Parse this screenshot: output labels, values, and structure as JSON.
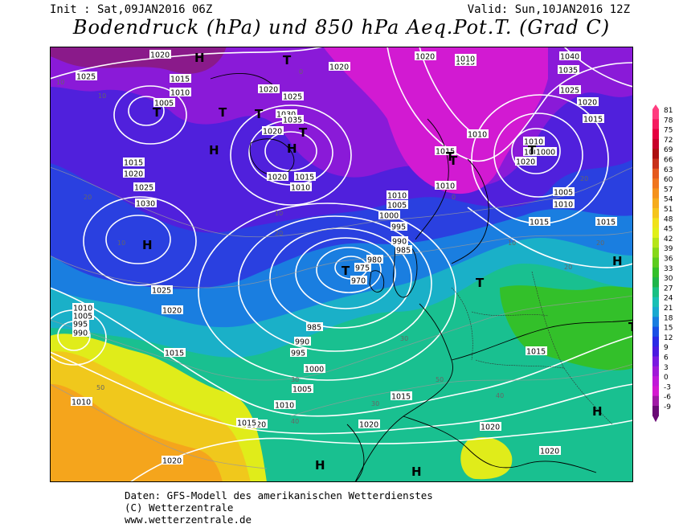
{
  "header": {
    "init": "Init : Sat,09JAN2016 06Z",
    "valid": "Valid: Sun,10JAN2016 12Z",
    "title": "Bodendruck (hPa) und 850 hPa Aeq.Pot.T. (Grad C)"
  },
  "footer": {
    "line1": "Daten: GFS-Modell des amerikanischen Wetterdienstes",
    "line2": "(C) Wetterzentrale",
    "line3": "www.wetterzentrale.de"
  },
  "colorbar": {
    "values": [
      "81",
      "78",
      "75",
      "72",
      "69",
      "66",
      "63",
      "60",
      "57",
      "54",
      "51",
      "48",
      "45",
      "42",
      "39",
      "36",
      "33",
      "30",
      "27",
      "24",
      "21",
      "18",
      "15",
      "12",
      "9",
      "6",
      "3",
      "0",
      "-3",
      "-6",
      "-9"
    ],
    "colors": [
      "#ff3d7f",
      "#f51c60",
      "#e5003f",
      "#c8002a",
      "#ad1010",
      "#c8311a",
      "#e55a1f",
      "#f0761f",
      "#f5921c",
      "#f6ac1c",
      "#f5c51c",
      "#f0e21c",
      "#e0f01a",
      "#b5e51a",
      "#86d81a",
      "#5ccc1f",
      "#33c02a",
      "#1fb54a",
      "#1ac084",
      "#1ac0b5",
      "#1aa9d0",
      "#1a7ee0",
      "#1a50e5",
      "#2a2ae5",
      "#4a1ae0",
      "#7a1ae0",
      "#a01ad8",
      "#c01ad8",
      "#d41ad0",
      "#a01aa5",
      "#6a0a75"
    ]
  },
  "map": {
    "pressure_labels": [
      {
        "text": "1020"
      },
      {
        "text": "1025"
      },
      {
        "text": "1015"
      },
      {
        "text": "1010"
      },
      {
        "text": "1005"
      },
      {
        "text": "1015"
      },
      {
        "text": "1020"
      },
      {
        "text": "1025"
      },
      {
        "text": "1030"
      },
      {
        "text": "1025"
      },
      {
        "text": "1020"
      },
      {
        "text": "1010"
      },
      {
        "text": "1005"
      },
      {
        "text": "995"
      },
      {
        "text": "990"
      },
      {
        "text": "1020"
      },
      {
        "text": "1025"
      },
      {
        "text": "1030"
      },
      {
        "text": "1035"
      },
      {
        "text": "1020"
      },
      {
        "text": "1015"
      },
      {
        "text": "1010"
      },
      {
        "text": "1020"
      },
      {
        "text": "1020"
      },
      {
        "text": "1015"
      },
      {
        "text": "1010"
      },
      {
        "text": "1005"
      },
      {
        "text": "1000"
      },
      {
        "text": "995"
      },
      {
        "text": "990"
      },
      {
        "text": "985"
      },
      {
        "text": "980"
      },
      {
        "text": "975"
      },
      {
        "text": "970"
      },
      {
        "text": "985"
      },
      {
        "text": "990"
      },
      {
        "text": "995"
      },
      {
        "text": "1000"
      },
      {
        "text": "1005"
      },
      {
        "text": "1010"
      },
      {
        "text": "1015"
      },
      {
        "text": "1015"
      },
      {
        "text": "1020"
      },
      {
        "text": "1020"
      },
      {
        "text": "1020"
      },
      {
        "text": "1015"
      },
      {
        "text": "1020"
      },
      {
        "text": "1040"
      },
      {
        "text": "1035"
      },
      {
        "text": "1025"
      },
      {
        "text": "1020"
      },
      {
        "text": "1015"
      },
      {
        "text": "1010"
      },
      {
        "text": "1000"
      },
      {
        "text": "1000"
      },
      {
        "text": "1005"
      },
      {
        "text": "1010"
      },
      {
        "text": "1015"
      },
      {
        "text": "1015"
      },
      {
        "text": "1015"
      },
      {
        "text": "1020"
      },
      {
        "text": "1020"
      },
      {
        "text": "1015"
      },
      {
        "text": "1010"
      },
      {
        "text": "1010"
      },
      {
        "text": "1010"
      },
      {
        "text": "1015"
      },
      {
        "text": "1020"
      },
      {
        "text": "1015"
      },
      {
        "text": "1010"
      }
    ],
    "centers": [
      {
        "symbol": "H"
      },
      {
        "symbol": "T"
      },
      {
        "symbol": "H"
      },
      {
        "symbol": "T"
      },
      {
        "symbol": "H"
      },
      {
        "symbol": "T"
      },
      {
        "symbol": "T"
      },
      {
        "symbol": "T"
      },
      {
        "symbol": "T"
      },
      {
        "symbol": "T"
      },
      {
        "symbol": "T"
      },
      {
        "symbol": "T"
      },
      {
        "symbol": "T"
      },
      {
        "symbol": "H"
      },
      {
        "symbol": "H"
      },
      {
        "symbol": "H"
      },
      {
        "symbol": "T"
      },
      {
        "symbol": "H"
      },
      {
        "symbol": "H"
      },
      {
        "symbol": "H"
      }
    ],
    "temp_labels": [
      "10",
      "10",
      "20",
      "10",
      "0",
      "10",
      "20",
      "30",
      "40",
      "50",
      "30",
      "40",
      "20",
      "0",
      "10",
      "20",
      "20",
      "30",
      "50",
      "40"
    ]
  }
}
